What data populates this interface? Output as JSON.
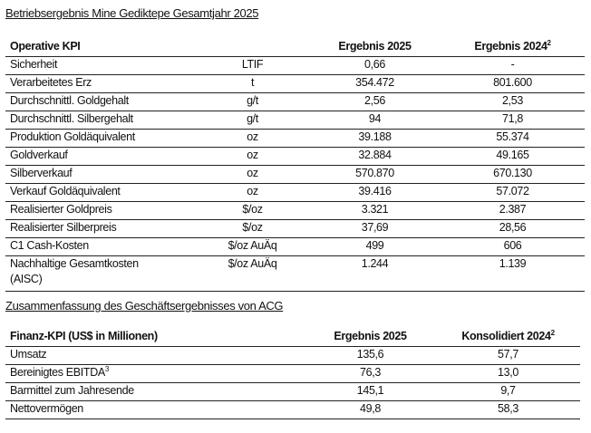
{
  "section1": {
    "title": "Betriebsergebnis Mine Gediktepe Gesamtjahr 2025",
    "headers": {
      "kpi": "Operative KPI",
      "unit": "",
      "y2025": "Ergebnis 2025",
      "y2024": "Ergebnis 2024",
      "y2024_sup": "2"
    },
    "rows": [
      {
        "label": "Sicherheit",
        "unit": "LTIF",
        "v2025": "0,66",
        "v2024": "-"
      },
      {
        "label": "Verarbeitetes Erz",
        "unit": "t",
        "v2025": "354.472",
        "v2024": "801.600"
      },
      {
        "label": "Durchschnittl. Goldgehalt",
        "unit": "g/t",
        "v2025": "2,56",
        "v2024": "2,53"
      },
      {
        "label": "Durchschnittl. Silbergehalt",
        "unit": "g/t",
        "v2025": "94",
        "v2024": "71,8"
      },
      {
        "label": "Produktion Goldäquivalent",
        "unit": "oz",
        "v2025": "39.188",
        "v2024": "55.374"
      },
      {
        "label": "Goldverkauf",
        "unit": "oz",
        "v2025": "32.884",
        "v2024": "49.165"
      },
      {
        "label": "Silberverkauf",
        "unit": "oz",
        "v2025": "570.870",
        "v2024": "670.130"
      },
      {
        "label": "Verkauf Goldäquivalent",
        "unit": "oz",
        "v2025": "39.416",
        "v2024": "57.072"
      },
      {
        "label": "Realisierter Goldpreis",
        "unit": "$/oz",
        "v2025": "3.321",
        "v2024": "2.387"
      },
      {
        "label": "Realisierter Silberpreis",
        "unit": "$/oz",
        "v2025": "37,69",
        "v2024": "28,56"
      },
      {
        "label": "C1 Cash-Kosten",
        "unit": "$/oz AuÄq",
        "v2025": "499",
        "v2024": "606"
      },
      {
        "label": "Nachhaltige Gesamtkosten (AISC)",
        "unit": "$/oz AuÄq",
        "v2025": "1.244",
        "v2024": "1.139"
      }
    ]
  },
  "section2": {
    "title": "Zusammenfassung des Geschäftsergebnisses von ACG",
    "headers": {
      "kpi": "Finanz-KPI (US$ in Millionen)",
      "y2025": "Ergebnis 2025",
      "y2024": "Konsolidiert 2024",
      "y2024_sup": "2"
    },
    "rows": [
      {
        "label": "Umsatz",
        "sup": "",
        "v2025": "135,6",
        "v2024": "57,7"
      },
      {
        "label": "Bereinigtes EBITDA",
        "sup": "3",
        "v2025": "76,3",
        "v2024": "13,0"
      },
      {
        "label": "Barmittel zum Jahresende",
        "sup": "",
        "v2025": "145,1",
        "v2024": "9,7"
      },
      {
        "label": "Nettovermögen",
        "sup": "",
        "v2025": "49,8",
        "v2024": "58,3"
      }
    ]
  }
}
